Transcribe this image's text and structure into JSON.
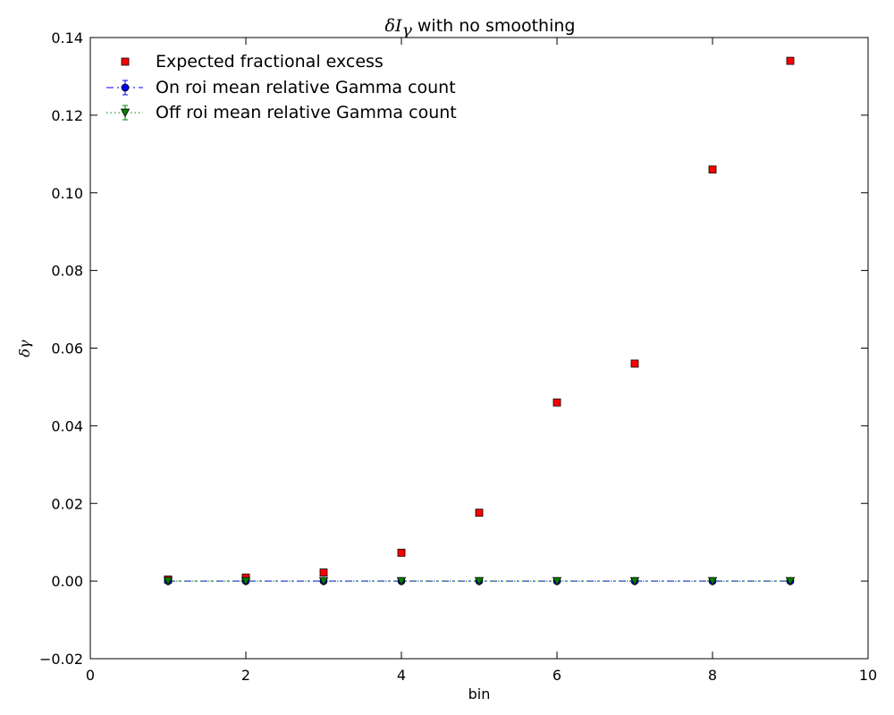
{
  "chart_data": {
    "type": "scatter",
    "title": {
      "math_main": "δI",
      "math_sub": "γ",
      "text": " with no smoothing"
    },
    "xlabel": "bin",
    "ylabel": "δγ",
    "xlim": [
      0,
      10
    ],
    "ylim": [
      -0.02,
      0.14
    ],
    "xticks": [
      0,
      2,
      4,
      6,
      8,
      10
    ],
    "xtick_labels": [
      "0",
      "2",
      "4",
      "6",
      "8",
      "10"
    ],
    "yticks": [
      -0.02,
      0.0,
      0.02,
      0.04,
      0.06,
      0.08,
      0.1,
      0.12,
      0.14
    ],
    "ytick_labels": [
      "−0.02",
      "0.00",
      "0.02",
      "0.04",
      "0.06",
      "0.08",
      "0.10",
      "0.12",
      "0.14"
    ],
    "grid": false,
    "legend_position": "top-left",
    "series": [
      {
        "name": "Expected fractional excess",
        "marker": "square",
        "line": "none",
        "color": "#ff0000",
        "x": [
          1,
          2,
          3,
          4,
          5,
          6,
          7,
          8,
          9
        ],
        "y": [
          0.0004,
          0.0009,
          0.0022,
          0.0073,
          0.0176,
          0.046,
          0.056,
          0.106,
          0.134
        ]
      },
      {
        "name": "On roi mean relative Gamma count",
        "marker": "circle",
        "line": "dashed",
        "color": "#0000ff",
        "x": [
          1,
          2,
          3,
          4,
          5,
          6,
          7,
          8,
          9
        ],
        "y": [
          0,
          0,
          0,
          0,
          0,
          0,
          0,
          0,
          0
        ]
      },
      {
        "name": "Off roi mean relative Gamma count",
        "marker": "triangle-down",
        "line": "dotted",
        "color": "#008000",
        "x": [
          1,
          2,
          3,
          4,
          5,
          6,
          7,
          8,
          9
        ],
        "y": [
          0,
          0,
          0,
          0,
          0,
          0,
          0,
          0,
          0
        ]
      }
    ]
  }
}
